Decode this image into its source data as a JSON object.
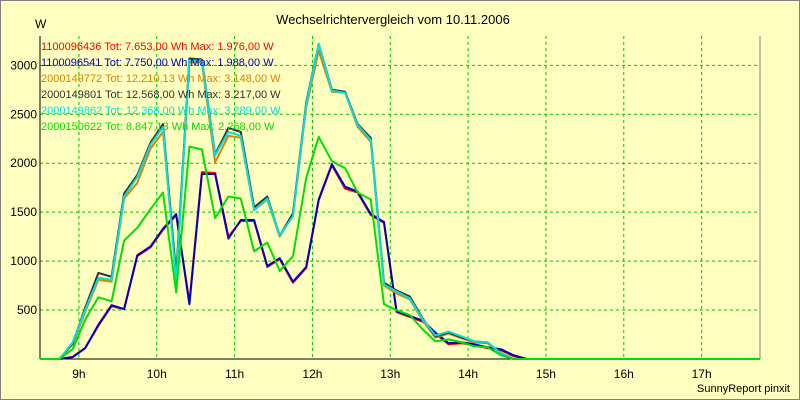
{
  "chart_data": {
    "type": "line",
    "title": "Wechselrichtervergleich vom 10.11.2006",
    "ylabel": "W",
    "xlabel": "",
    "footer": "SunnyReport pinxit",
    "grid": true,
    "legend_placement": "top-left",
    "background": "#ffffc0",
    "grid_color": "#00c000",
    "ylim": [
      0,
      3300
    ],
    "xlim": [
      8.5,
      17.75
    ],
    "y_ticks": [
      500,
      1000,
      1500,
      2000,
      2500,
      3000
    ],
    "x_ticks": [
      {
        "value": 9,
        "label": "9h"
      },
      {
        "value": 10,
        "label": "10h"
      },
      {
        "value": 11,
        "label": "11h"
      },
      {
        "value": 12,
        "label": "12h"
      },
      {
        "value": 13,
        "label": "13h"
      },
      {
        "value": 14,
        "label": "14h"
      },
      {
        "value": 15,
        "label": "15h"
      },
      {
        "value": 16,
        "label": "16h"
      },
      {
        "value": 17,
        "label": "17h"
      }
    ],
    "x": [
      8.5,
      8.75,
      8.92,
      9.08,
      9.25,
      9.42,
      9.58,
      9.75,
      9.92,
      10.08,
      10.25,
      10.42,
      10.58,
      10.75,
      10.92,
      11.08,
      11.25,
      11.42,
      11.58,
      11.75,
      11.92,
      12.08,
      12.25,
      12.42,
      12.58,
      12.75,
      12.92,
      13.08,
      13.25,
      13.42,
      13.58,
      13.75,
      13.92,
      14.08,
      14.25,
      14.42,
      14.58,
      14.75,
      14.92,
      15.08,
      15.25,
      15.42,
      15.58,
      15.75,
      15.92,
      16.08,
      16.25,
      16.42,
      16.58,
      16.75,
      16.92,
      17.08,
      17.25,
      17.42,
      17.58,
      17.75
    ],
    "series": [
      {
        "name": "1100096436 Tot: 7.653,00 Wh Max: 1.976,00 W",
        "color": "#ff0000",
        "values": [
          0,
          0,
          20,
          110,
          340,
          540,
          510,
          1050,
          1140,
          1320,
          1470,
          580,
          1910,
          1900,
          1250,
          1410,
          1410,
          940,
          1020,
          780,
          930,
          1620,
          1980,
          1740,
          1700,
          1470,
          1390,
          480,
          430,
          380,
          260,
          150,
          160,
          140,
          110,
          90,
          30,
          0,
          0,
          0,
          0,
          0,
          0,
          0,
          0,
          0,
          0,
          0,
          0,
          0,
          0,
          0,
          0,
          0,
          0,
          0
        ]
      },
      {
        "name": "1100096541 Tot: 7.750,00 Wh Max: 1.988,00 W",
        "color": "#0000c0",
        "values": [
          0,
          0,
          20,
          110,
          350,
          550,
          510,
          1060,
          1150,
          1330,
          1480,
          560,
          1890,
          1890,
          1230,
          1420,
          1420,
          950,
          1030,
          790,
          940,
          1630,
          1990,
          1760,
          1710,
          1480,
          1400,
          490,
          440,
          390,
          270,
          160,
          170,
          150,
          120,
          100,
          40,
          0,
          0,
          0,
          0,
          0,
          0,
          0,
          0,
          0,
          0,
          0,
          0,
          0,
          0,
          0,
          0,
          0,
          0,
          0
        ]
      },
      {
        "name": "2000149772 Tot: 12.210,13 Wh Max: 3.148,00 W",
        "color": "#e08000",
        "values": [
          0,
          0,
          150,
          480,
          810,
          790,
          1640,
          1800,
          2150,
          2320,
          850,
          3030,
          3030,
          2010,
          2280,
          2260,
          1520,
          1630,
          1250,
          1470,
          2570,
          3150,
          2730,
          2720,
          2370,
          2220,
          750,
          670,
          610,
          390,
          220,
          260,
          210,
          170,
          160,
          60,
          0,
          0,
          0,
          0,
          0,
          0,
          0,
          0,
          0,
          0,
          0,
          0,
          0,
          0,
          0,
          0,
          0,
          0,
          0,
          0
        ]
      },
      {
        "name": "2000149801 Tot: 12.568,00 Wh Max: 3.217,00 W",
        "color": "#303030",
        "values": [
          0,
          0,
          160,
          520,
          880,
          840,
          1690,
          1880,
          2210,
          2400,
          860,
          3070,
          3060,
          2090,
          2360,
          2320,
          1550,
          1660,
          1260,
          1490,
          2620,
          3220,
          2750,
          2730,
          2400,
          2260,
          780,
          700,
          640,
          410,
          230,
          270,
          220,
          180,
          170,
          60,
          0,
          0,
          0,
          0,
          0,
          0,
          0,
          0,
          0,
          0,
          0,
          0,
          0,
          0,
          0,
          0,
          0,
          0,
          0,
          0
        ]
      },
      {
        "name": "2000149862 Tot: 12.368,00 Wh Max: 3.289,00 W",
        "color": "#00e0e0",
        "values": [
          0,
          0,
          170,
          500,
          830,
          810,
          1660,
          1860,
          2190,
          2370,
          790,
          3050,
          3050,
          2080,
          2320,
          2280,
          1520,
          1640,
          1260,
          1460,
          2600,
          3220,
          2740,
          2720,
          2390,
          2240,
          760,
          690,
          620,
          400,
          240,
          280,
          230,
          180,
          170,
          60,
          0,
          0,
          0,
          0,
          0,
          0,
          0,
          0,
          0,
          0,
          0,
          0,
          0,
          0,
          0,
          0,
          0,
          0,
          0,
          0
        ]
      },
      {
        "name": "2000150622 Tot: 8.847,13 Wh Max: 2.268,00 W",
        "color": "#00e000",
        "values": [
          0,
          0,
          100,
          400,
          630,
          590,
          1210,
          1340,
          1530,
          1700,
          680,
          2170,
          2140,
          1440,
          1660,
          1640,
          1100,
          1190,
          900,
          1050,
          1850,
          2270,
          2020,
          1950,
          1700,
          1630,
          560,
          500,
          450,
          300,
          180,
          200,
          170,
          130,
          120,
          40,
          0,
          0,
          0,
          0,
          0,
          0,
          0,
          0,
          0,
          0,
          0,
          0,
          0,
          0,
          0,
          0,
          0,
          0,
          0,
          0
        ]
      }
    ]
  }
}
